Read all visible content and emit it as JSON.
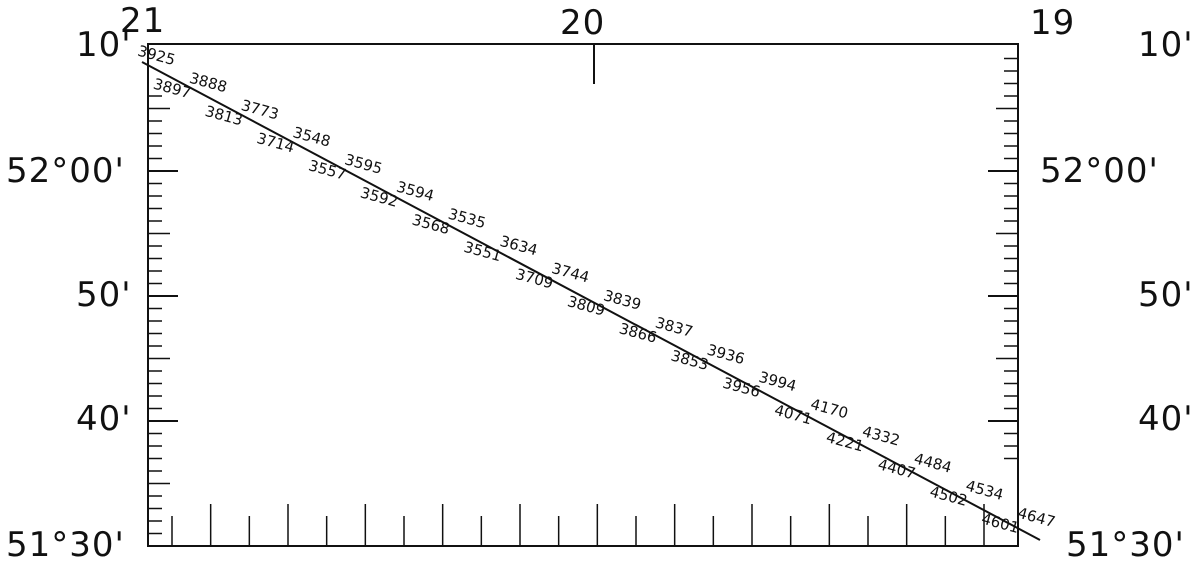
{
  "map": {
    "longitude_labels": [
      "21",
      "20",
      "19"
    ],
    "latitude_labels_left": [
      "10'",
      "52°00'",
      "50'",
      "40'",
      "51°30'"
    ],
    "latitude_labels_right": [
      "10'",
      "52°00'",
      "50'",
      "40'",
      "51°30'"
    ],
    "track_soundings": [
      "3925",
      "3897",
      "3888",
      "3813",
      "3773",
      "3714",
      "3548",
      "3557",
      "3595",
      "3592",
      "3594",
      "3568",
      "3535",
      "3551",
      "3634",
      "3709",
      "3744",
      "3809",
      "3839",
      "3866",
      "3837",
      "3853",
      "3936",
      "3956",
      "3994",
      "4071",
      "4170",
      "4221",
      "4332",
      "4407",
      "4484",
      "4502",
      "4534",
      "4601",
      "4647"
    ],
    "track_line_color": "#111111",
    "frame_color": "#111111"
  }
}
